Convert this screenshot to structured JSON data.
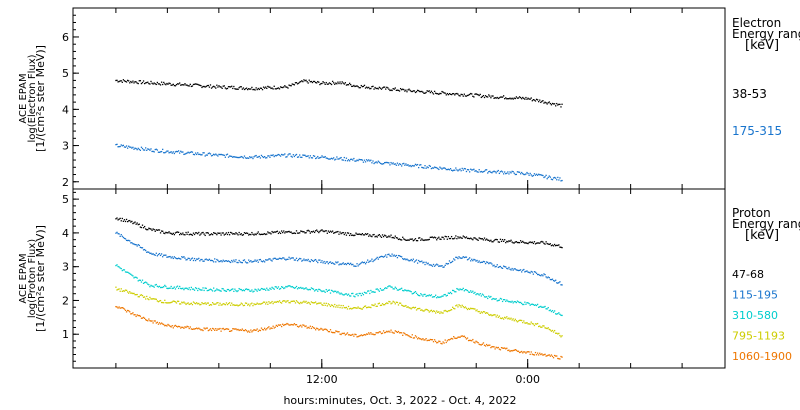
{
  "chart_data": [
    {
      "type": "scatter",
      "title": "",
      "ylabel": [
        "ACE EPAM",
        "log(Electron Flux)",
        "[1/(cm²s ster MeV)]"
      ],
      "ylim": [
        1.8,
        6.8
      ],
      "yticks": [
        "2",
        "3",
        "4",
        "5",
        "6"
      ],
      "yticks_values": [
        2,
        3,
        4,
        5,
        6
      ],
      "legend_title": [
        "Electron",
        "Energy range",
        "[keV]"
      ],
      "legend_placement": "right",
      "series": [
        {
          "name": "38-53",
          "color": "#000000",
          "x": [
            0,
            2,
            4,
            6,
            8,
            10,
            11,
            12,
            13,
            14,
            16,
            18,
            20,
            22,
            24,
            25.3,
            26
          ],
          "y": [
            4.8,
            4.73,
            4.68,
            4.62,
            4.58,
            4.62,
            4.78,
            4.72,
            4.74,
            4.65,
            4.56,
            4.48,
            4.42,
            4.35,
            4.3,
            4.18,
            4.1
          ]
        },
        {
          "name": "175-315",
          "color": "#1874cd",
          "x": [
            0,
            2,
            4,
            6,
            8,
            10,
            12,
            14,
            16,
            18,
            20,
            22,
            24,
            26
          ],
          "y": [
            3.0,
            2.88,
            2.8,
            2.73,
            2.68,
            2.73,
            2.68,
            2.6,
            2.5,
            2.42,
            2.33,
            2.28,
            2.22,
            2.06
          ]
        }
      ]
    },
    {
      "type": "scatter",
      "title": "",
      "ylabel": [
        "ACE EPAM",
        "log(Proton Flux)",
        "[1/(cm²s ster MeV)]"
      ],
      "ylim": [
        0,
        5.3
      ],
      "yticks": [
        "1",
        "2",
        "3",
        "4",
        "5"
      ],
      "yticks_values": [
        1,
        2,
        3,
        4,
        5
      ],
      "legend_title": [
        "Proton",
        "Energy range",
        "[keV]"
      ],
      "legend_placement": "right",
      "series": [
        {
          "name": "47-68",
          "color": "#000000",
          "x": [
            0,
            1,
            2,
            3,
            5,
            8,
            10,
            12,
            14,
            16,
            17,
            18,
            20,
            22,
            24,
            25,
            26
          ],
          "y": [
            4.45,
            4.3,
            4.1,
            4.0,
            3.97,
            3.98,
            4.02,
            4.05,
            3.95,
            3.9,
            3.8,
            3.82,
            3.88,
            3.78,
            3.72,
            3.7,
            3.6
          ]
        },
        {
          "name": "115-195",
          "color": "#1874cd",
          "x": [
            0,
            1,
            2,
            3,
            5,
            8,
            10,
            12,
            14,
            16,
            18,
            19,
            20,
            22,
            24,
            25,
            26
          ],
          "y": [
            4.0,
            3.7,
            3.4,
            3.3,
            3.2,
            3.15,
            3.25,
            3.15,
            3.05,
            3.35,
            3.1,
            3.0,
            3.3,
            3.05,
            2.85,
            2.75,
            2.48
          ]
        },
        {
          "name": "310-580",
          "color": "#00cdcd",
          "x": [
            0,
            1,
            2,
            3,
            5,
            8,
            10,
            12,
            14,
            16,
            18,
            19,
            20,
            22,
            24,
            25,
            26
          ],
          "y": [
            3.05,
            2.7,
            2.45,
            2.4,
            2.33,
            2.3,
            2.4,
            2.3,
            2.15,
            2.4,
            2.15,
            2.1,
            2.35,
            2.05,
            1.9,
            1.8,
            1.55
          ]
        },
        {
          "name": "795-1193",
          "color": "#cdcd00",
          "x": [
            0,
            1,
            2,
            3,
            5,
            8,
            10,
            12,
            14,
            16,
            18,
            19,
            20,
            22,
            24,
            25,
            26
          ],
          "y": [
            2.35,
            2.2,
            2.05,
            1.95,
            1.9,
            1.88,
            1.98,
            1.9,
            1.75,
            1.95,
            1.7,
            1.65,
            1.85,
            1.55,
            1.35,
            1.22,
            0.95
          ]
        },
        {
          "name": "1060-1900",
          "color": "#ee7600",
          "x": [
            0,
            1,
            2,
            3,
            5,
            8,
            10,
            12,
            14,
            16,
            18,
            19,
            20,
            22,
            24,
            25,
            26
          ],
          "y": [
            1.85,
            1.6,
            1.4,
            1.25,
            1.15,
            1.1,
            1.3,
            1.15,
            0.95,
            1.1,
            0.85,
            0.75,
            0.95,
            0.6,
            0.45,
            0.4,
            0.3
          ]
        }
      ]
    }
  ],
  "x_axis": {
    "xlim": [
      -2.5,
      35.5
    ],
    "tick_labels": [
      {
        "x": 12,
        "label": "12:00"
      },
      {
        "x": 24,
        "label": "0:00"
      }
    ],
    "minor_ticks": [
      0,
      3,
      6,
      9,
      12,
      15,
      18,
      21,
      24,
      27,
      30,
      33
    ],
    "xlabel": "hours:minutes, Oct.  3, 2022 - Oct.  4, 2022"
  }
}
